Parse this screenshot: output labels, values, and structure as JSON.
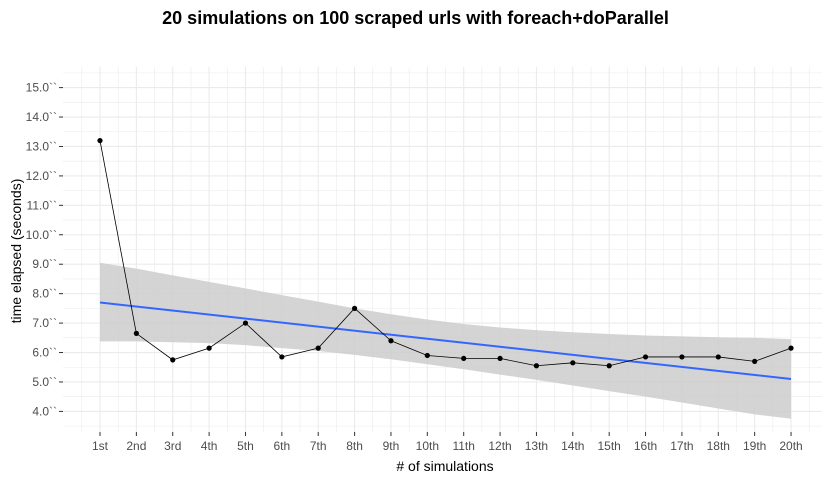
{
  "chart_data": {
    "type": "line",
    "title": "20 simulations on 100 scraped urls with foreach+doParallel",
    "xlabel": "# of simulations",
    "ylabel": "time elapsed (seconds)",
    "categories": [
      "1st",
      "2nd",
      "3rd",
      "4th",
      "5th",
      "6th",
      "7th",
      "8th",
      "9th",
      "10th",
      "11th",
      "12th",
      "13th",
      "14th",
      "15th",
      "16th",
      "17th",
      "18th",
      "19th",
      "20th"
    ],
    "values": [
      13.2,
      6.65,
      5.75,
      6.15,
      7.0,
      5.85,
      6.15,
      7.5,
      6.4,
      5.9,
      5.8,
      5.8,
      5.55,
      5.65,
      5.55,
      5.85,
      5.85,
      5.85,
      5.7,
      6.15
    ],
    "ylim": [
      3.3,
      15.7
    ],
    "y_ticks": [
      4,
      5,
      6,
      7,
      8,
      9,
      10,
      11,
      12,
      13,
      14,
      15
    ],
    "y_tick_labels": [
      "4.0``",
      "5.0``",
      "6.0``",
      "7.0``",
      "8.0``",
      "9.0``",
      "10.0``",
      "11.0``",
      "12.0``",
      "13.0``",
      "14.0``",
      "15.0``"
    ],
    "trend_line": {
      "start": 7.7,
      "end": 5.1
    },
    "confidence_band": {
      "upper": [
        9.05,
        8.85,
        8.62,
        8.4,
        8.18,
        7.95,
        7.73,
        7.5,
        7.3,
        7.12,
        6.97,
        6.85,
        6.76,
        6.69,
        6.63,
        6.58,
        6.55,
        6.52,
        6.5,
        6.45
      ],
      "lower": [
        6.38,
        6.38,
        6.35,
        6.32,
        6.25,
        6.15,
        6.05,
        5.92,
        5.77,
        5.6,
        5.43,
        5.25,
        5.07,
        4.88,
        4.69,
        4.5,
        4.3,
        4.1,
        3.9,
        3.75
      ]
    },
    "grid": true,
    "legend": "none",
    "colors": {
      "line": "#000000",
      "points": "#000000",
      "trend": "#3366ff",
      "band": "#cccccc",
      "grid": "#ebebeb"
    }
  }
}
